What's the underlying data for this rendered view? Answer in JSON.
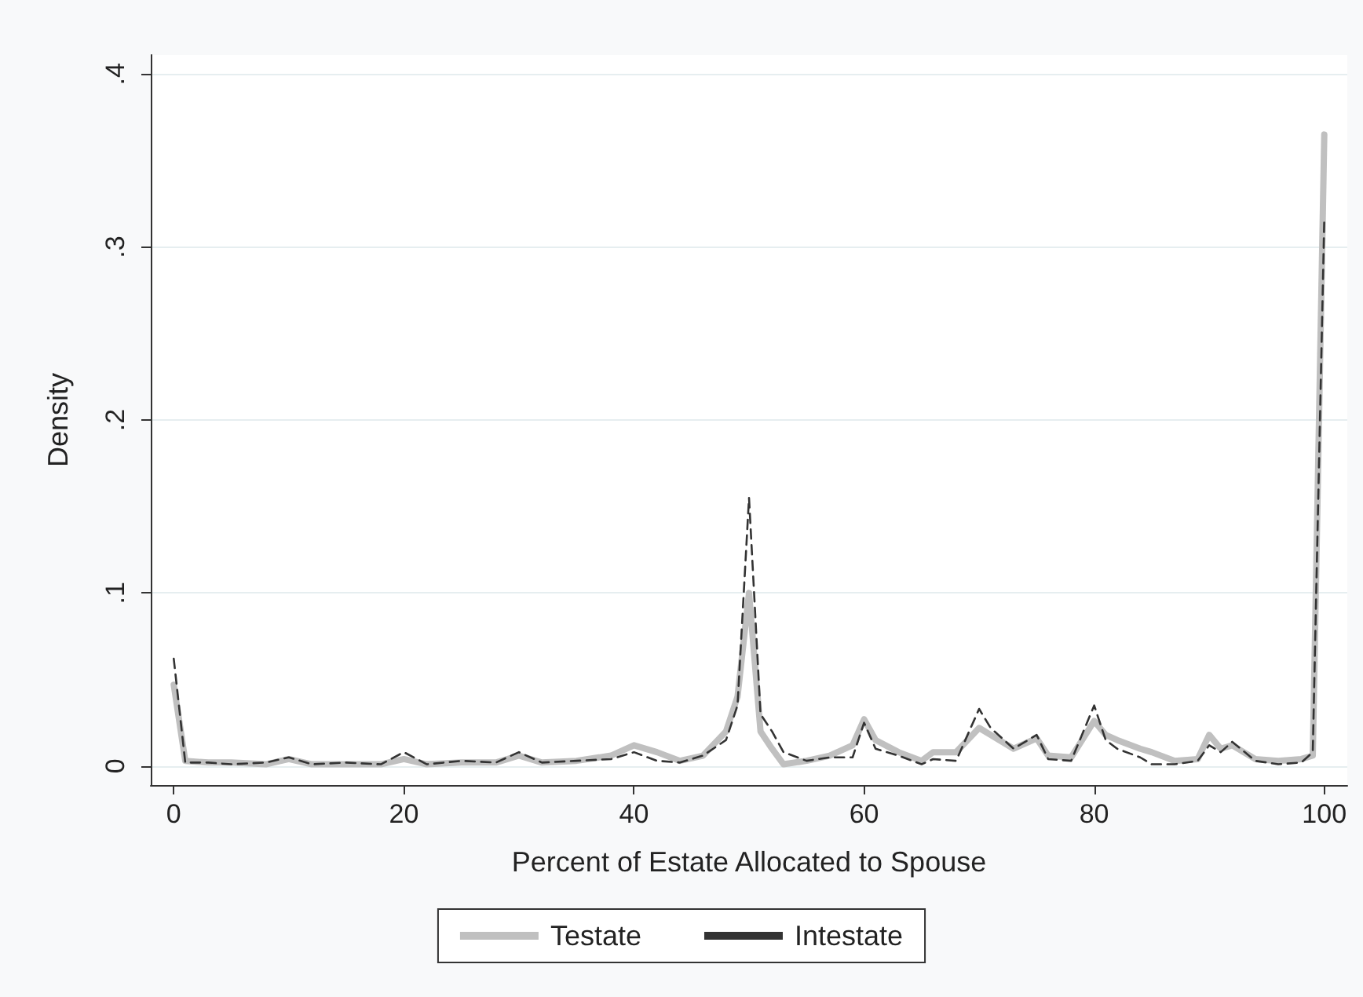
{
  "chart_data": {
    "type": "line",
    "xlabel": "Percent of Estate Allocated to Spouse",
    "ylabel": "Density",
    "xlim": [
      -2,
      102
    ],
    "xticks": [
      0,
      20,
      40,
      60,
      80,
      100
    ],
    "ylim": [
      -0.011,
      0.411
    ],
    "yticks": [
      {
        "value": 0,
        "label": "0"
      },
      {
        "value": 0.1,
        "label": ".1"
      },
      {
        "value": 0.2,
        "label": ".2"
      },
      {
        "value": 0.3,
        "label": ".3"
      },
      {
        "value": 0.4,
        "label": ".4"
      }
    ],
    "grid": "y",
    "legend": "bottom",
    "marker": "none",
    "series": [
      {
        "name": "Testate",
        "color": "#c0c0c0",
        "line_style": "solid",
        "x": [
          0,
          1,
          3,
          5,
          8,
          10,
          12,
          15,
          18,
          20,
          22,
          25,
          28,
          30,
          32,
          35,
          38,
          40,
          42,
          44,
          46,
          48,
          49,
          50,
          51,
          52,
          53,
          55,
          57,
          59,
          60,
          61,
          63,
          65,
          66,
          68,
          70,
          71,
          73,
          75,
          76,
          78,
          80,
          81,
          82,
          84,
          85,
          87,
          89,
          90,
          91,
          92,
          94,
          96,
          98,
          99,
          100
        ],
        "values": [
          0.047,
          0.003,
          0.002,
          0.002,
          0.001,
          0.004,
          0.001,
          0.001,
          0.001,
          0.004,
          0.001,
          0.002,
          0.002,
          0.006,
          0.002,
          0.003,
          0.006,
          0.012,
          0.008,
          0.003,
          0.006,
          0.02,
          0.04,
          0.1,
          0.02,
          0.01,
          0.001,
          0.003,
          0.006,
          0.012,
          0.027,
          0.015,
          0.008,
          0.003,
          0.008,
          0.008,
          0.022,
          0.018,
          0.01,
          0.016,
          0.006,
          0.005,
          0.026,
          0.018,
          0.015,
          0.01,
          0.008,
          0.003,
          0.004,
          0.018,
          0.01,
          0.012,
          0.004,
          0.003,
          0.004,
          0.006,
          0.365
        ]
      },
      {
        "name": "Intestate",
        "color": "#333333",
        "line_style": "dashed",
        "x": [
          0,
          1,
          3,
          5,
          8,
          10,
          12,
          15,
          18,
          20,
          22,
          25,
          28,
          30,
          32,
          35,
          38,
          40,
          42,
          44,
          46,
          48,
          49,
          50,
          51,
          52,
          53,
          55,
          57,
          59,
          60,
          61,
          63,
          65,
          66,
          68,
          70,
          71,
          73,
          75,
          76,
          78,
          80,
          81,
          82,
          84,
          85,
          87,
          89,
          90,
          91,
          92,
          94,
          96,
          98,
          99,
          100
        ],
        "values": [
          0.062,
          0.002,
          0.002,
          0.001,
          0.002,
          0.005,
          0.001,
          0.002,
          0.001,
          0.008,
          0.001,
          0.003,
          0.002,
          0.008,
          0.002,
          0.003,
          0.004,
          0.008,
          0.003,
          0.002,
          0.006,
          0.015,
          0.035,
          0.155,
          0.03,
          0.02,
          0.008,
          0.003,
          0.005,
          0.005,
          0.025,
          0.01,
          0.006,
          0.001,
          0.004,
          0.003,
          0.033,
          0.022,
          0.01,
          0.018,
          0.004,
          0.003,
          0.035,
          0.015,
          0.01,
          0.005,
          0.001,
          0.001,
          0.003,
          0.012,
          0.008,
          0.014,
          0.003,
          0.001,
          0.002,
          0.008,
          0.316
        ]
      }
    ]
  }
}
